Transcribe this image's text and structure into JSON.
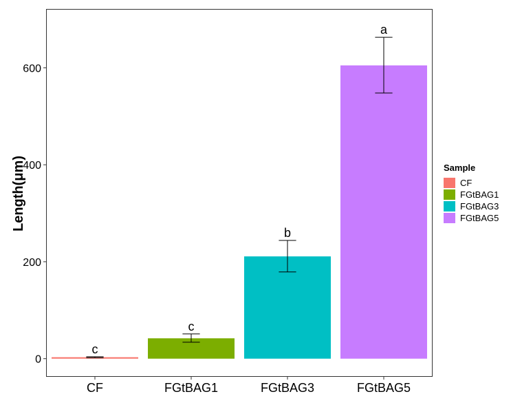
{
  "chart_data": {
    "type": "bar",
    "categories": [
      "CF",
      "FGtBAG1",
      "FGtBAG3",
      "FGtBAG5"
    ],
    "values": [
      3,
      42,
      211,
      605
    ],
    "error_low": [
      2,
      34,
      179,
      548
    ],
    "error_high": [
      4,
      51,
      244,
      663
    ],
    "significance_labels": [
      "c",
      "c",
      "b",
      "a"
    ],
    "colors": [
      "#F8766D",
      "#7CAE00",
      "#00BFC4",
      "#C77CFF"
    ],
    "title": "",
    "xlabel": "",
    "ylabel": "Length(μm)",
    "ylim": [
      -36,
      720
    ],
    "yticks": [
      0,
      200,
      400,
      600
    ],
    "grid": false,
    "legend": {
      "title": "Sample",
      "entries": [
        "CF",
        "FGtBAG1",
        "FGtBAG3",
        "FGtBAG5"
      ],
      "position": "right"
    }
  }
}
